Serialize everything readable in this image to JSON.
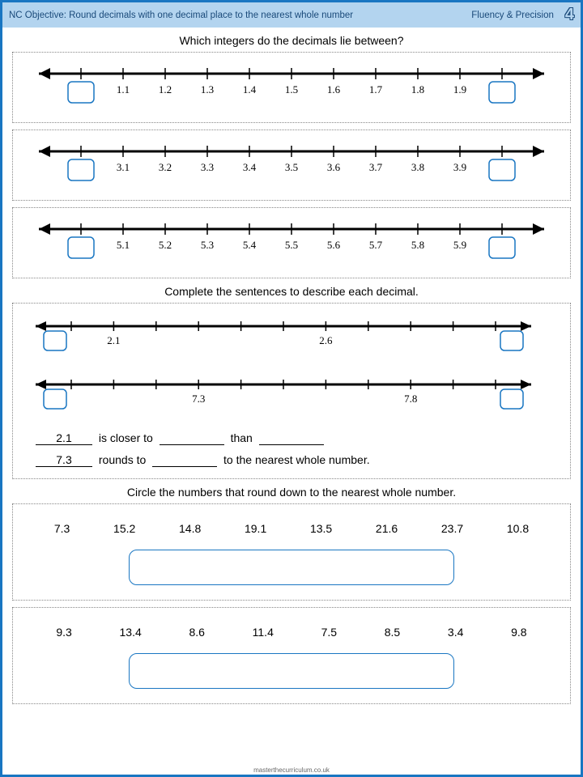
{
  "header": {
    "objective": "NC Objective: Round decimals with one decimal place to the nearest whole number",
    "section": "Fluency & Precision",
    "page_num": "4"
  },
  "q1": {
    "prompt": "Which integers do the decimals lie between?",
    "lines": [
      {
        "labels": [
          "1.1",
          "1.2",
          "1.3",
          "1.4",
          "1.5",
          "1.6",
          "1.7",
          "1.8",
          "1.9"
        ]
      },
      {
        "labels": [
          "3.1",
          "3.2",
          "3.3",
          "3.4",
          "3.5",
          "3.6",
          "3.7",
          "3.8",
          "3.9"
        ]
      },
      {
        "labels": [
          "5.1",
          "5.2",
          "5.3",
          "5.4",
          "5.5",
          "5.6",
          "5.7",
          "5.8",
          "5.9"
        ]
      }
    ],
    "line_color": "#000000",
    "box_color": "#1976c2"
  },
  "q2": {
    "prompt": "Complete the sentences to describe each decimal.",
    "lines": [
      {
        "mark_a": {
          "pos": 1,
          "label": "2.1"
        },
        "mark_b": {
          "pos": 6,
          "label": "2.6"
        }
      },
      {
        "mark_a": {
          "pos": 3,
          "label": "7.3"
        },
        "mark_b": {
          "pos": 8,
          "label": "7.8"
        }
      }
    ],
    "sentence1": {
      "pre": "2.1",
      "mid1": " is closer to ",
      "mid2": " than "
    },
    "sentence2": {
      "pre": "7.3",
      "mid1": " rounds to ",
      "mid2": " to the nearest whole number."
    }
  },
  "q3": {
    "prompt": "Circle the numbers that round down to the nearest whole number.",
    "rows": [
      [
        "7.3",
        "15.2",
        "14.8",
        "19.1",
        "13.5",
        "21.6",
        "23.7",
        "10.8"
      ],
      [
        "9.3",
        "13.4",
        "8.6",
        "11.4",
        "7.5",
        "8.5",
        "3.4",
        "9.8"
      ]
    ]
  },
  "footer": "masterthecurriculum.co.uk"
}
